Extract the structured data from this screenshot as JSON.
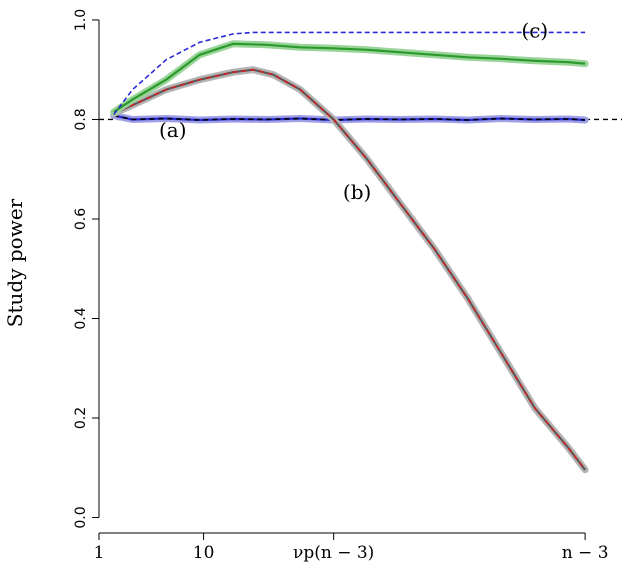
{
  "chart_data": {
    "type": "line",
    "title": "",
    "xlabel": "",
    "ylabel": "Study power",
    "xlim": [
      0,
      7.8
    ],
    "ylim": [
      -0.015,
      1.02
    ],
    "x_scale": "log",
    "grid": false,
    "legend": "none",
    "y_ticks": [
      0.0,
      0.2,
      0.4,
      0.6,
      0.8,
      1.0
    ],
    "y_tick_labels": [
      "0.0",
      "0.2",
      "0.4",
      "0.6",
      "0.8",
      "1.0"
    ],
    "x_ticks": [
      {
        "value": 0,
        "label": "1"
      },
      {
        "value": 1.56,
        "label": "10"
      },
      {
        "value": 3.5,
        "label": "νp(n − 3)"
      },
      {
        "value": 7.25,
        "label": "n − 3"
      }
    ],
    "reference_line": {
      "y": 0.8,
      "color": "#000000",
      "style": "dashed"
    },
    "series": [
      {
        "key": "a",
        "color": "#2a2ad6",
        "band_color": "#9f9fe6",
        "dashed_overlay_color": "#000000",
        "x": [
          0.22,
          0.5,
          1.0,
          1.5,
          2.0,
          2.5,
          3.0,
          3.5,
          4.0,
          4.5,
          5.0,
          5.5,
          6.0,
          6.5,
          7.0,
          7.25
        ],
        "y": [
          0.808,
          0.8,
          0.802,
          0.799,
          0.801,
          0.8,
          0.802,
          0.799,
          0.801,
          0.8,
          0.801,
          0.799,
          0.802,
          0.8,
          0.801,
          0.799
        ]
      },
      {
        "key": "b",
        "color": "#5a5a5a",
        "band_color": "#b4b4b4",
        "dashed_overlay_color": "#d42020",
        "x": [
          0.22,
          0.6,
          1.0,
          1.5,
          2.0,
          2.3,
          2.6,
          3.0,
          3.5,
          4.0,
          4.5,
          5.0,
          5.5,
          6.0,
          6.5,
          7.0,
          7.25
        ],
        "y": [
          0.812,
          0.835,
          0.86,
          0.88,
          0.895,
          0.9,
          0.89,
          0.86,
          0.8,
          0.72,
          0.63,
          0.54,
          0.44,
          0.33,
          0.22,
          0.14,
          0.096
        ]
      },
      {
        "key": "c",
        "color": "#2a9a2a",
        "band_color": "#9ad49a",
        "x": [
          0.22,
          0.5,
          1.0,
          1.5,
          2.0,
          2.5,
          3.0,
          3.5,
          4.0,
          4.5,
          5.0,
          5.5,
          6.0,
          6.5,
          7.0,
          7.25
        ],
        "y": [
          0.815,
          0.84,
          0.88,
          0.93,
          0.952,
          0.95,
          0.945,
          0.943,
          0.94,
          0.935,
          0.93,
          0.925,
          0.922,
          0.918,
          0.915,
          0.912
        ]
      },
      {
        "key": "c-theory",
        "color": "#2a2ad6",
        "style": "dashed",
        "x": [
          0.22,
          0.5,
          1.0,
          1.5,
          2.0,
          2.3,
          3.0,
          4.0,
          5.0,
          6.0,
          7.25
        ],
        "y": [
          0.81,
          0.86,
          0.92,
          0.955,
          0.972,
          0.975,
          0.975,
          0.975,
          0.975,
          0.975,
          0.975
        ]
      }
    ],
    "annotations": [
      {
        "text": "(a)",
        "x": 1.1,
        "y": 0.765
      },
      {
        "text": "(b)",
        "x": 3.85,
        "y": 0.64
      },
      {
        "text": "(c)",
        "x": 6.5,
        "y": 0.965
      }
    ]
  }
}
